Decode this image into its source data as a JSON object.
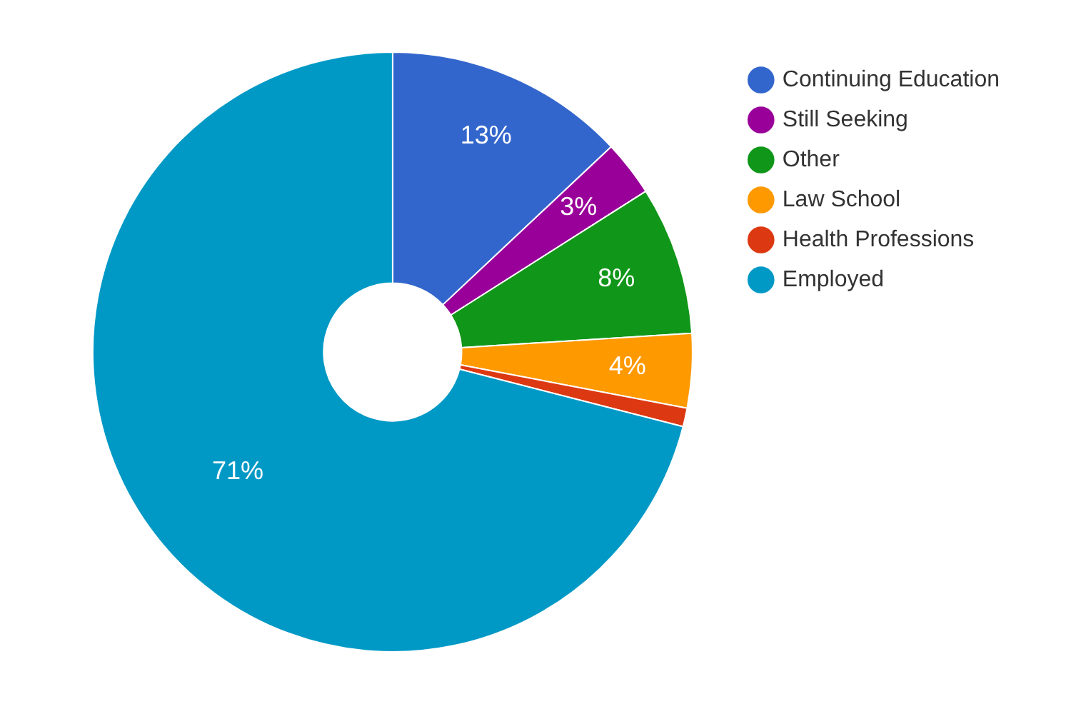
{
  "chart_data": {
    "type": "donut",
    "categories": [
      "Continuing Education",
      "Still Seeking",
      "Other",
      "Law School",
      "Health Professions",
      "Employed"
    ],
    "values": [
      13,
      3,
      8,
      4,
      1,
      71
    ],
    "colors": [
      "#3366cc",
      "#990099",
      "#109618",
      "#ff9900",
      "#dc3912",
      "#0099c6"
    ],
    "value_labels": [
      "13%",
      "3%",
      "8%",
      "4%",
      null,
      "71%"
    ],
    "legend": "top right"
  }
}
